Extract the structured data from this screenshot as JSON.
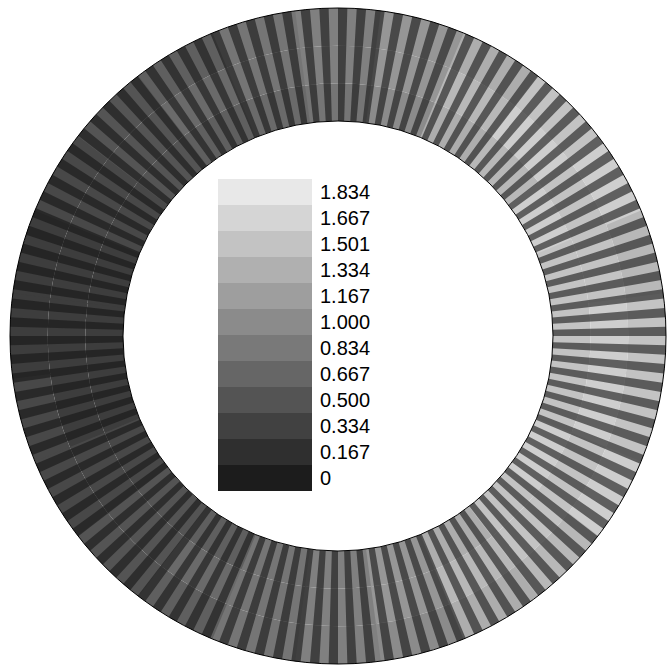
{
  "chart_data": {
    "type": "heatmap",
    "theta": [
      0,
      15,
      30,
      45,
      60,
      75,
      90,
      105,
      120,
      135,
      150,
      165,
      180,
      195,
      210,
      225,
      240,
      255,
      270,
      285,
      300,
      315,
      330,
      345
    ],
    "cells": [
      [
        1.5,
        1.6,
        1.5
      ],
      [
        1.5,
        1.5,
        1.4
      ],
      [
        1.6,
        1.5,
        1.6
      ],
      [
        1.4,
        1.6,
        1.5
      ],
      [
        1.3,
        1.4,
        1.3
      ],
      [
        1.0,
        1.1,
        1.1
      ],
      [
        0.8,
        0.9,
        0.9
      ],
      [
        0.7,
        0.8,
        0.8
      ],
      [
        0.6,
        0.7,
        0.6
      ],
      [
        0.5,
        0.5,
        0.5
      ],
      [
        0.4,
        0.4,
        0.4
      ],
      [
        0.3,
        0.3,
        0.3
      ],
      [
        0.3,
        0.3,
        0.3
      ],
      [
        0.3,
        0.3,
        0.4
      ],
      [
        0.4,
        0.4,
        0.4
      ],
      [
        0.5,
        0.5,
        0.5
      ],
      [
        0.6,
        0.7,
        0.6
      ],
      [
        0.8,
        0.8,
        0.8
      ],
      [
        0.9,
        0.9,
        0.9
      ],
      [
        1.1,
        1.1,
        1.0
      ],
      [
        1.3,
        1.4,
        1.3
      ],
      [
        1.5,
        1.5,
        1.4
      ],
      [
        1.6,
        1.5,
        1.6
      ],
      [
        1.5,
        1.6,
        1.5
      ]
    ],
    "colorbar": {
      "range": [
        0,
        1.834
      ],
      "ticks": [
        0,
        0.167,
        0.334,
        {
          "value": 0.5,
          "label": "0.500"
        },
        0.667,
        0.834,
        {
          "value": 1,
          "label": "1.000"
        },
        1.167,
        1.334,
        1.501,
        1.667,
        1.834
      ]
    }
  }
}
